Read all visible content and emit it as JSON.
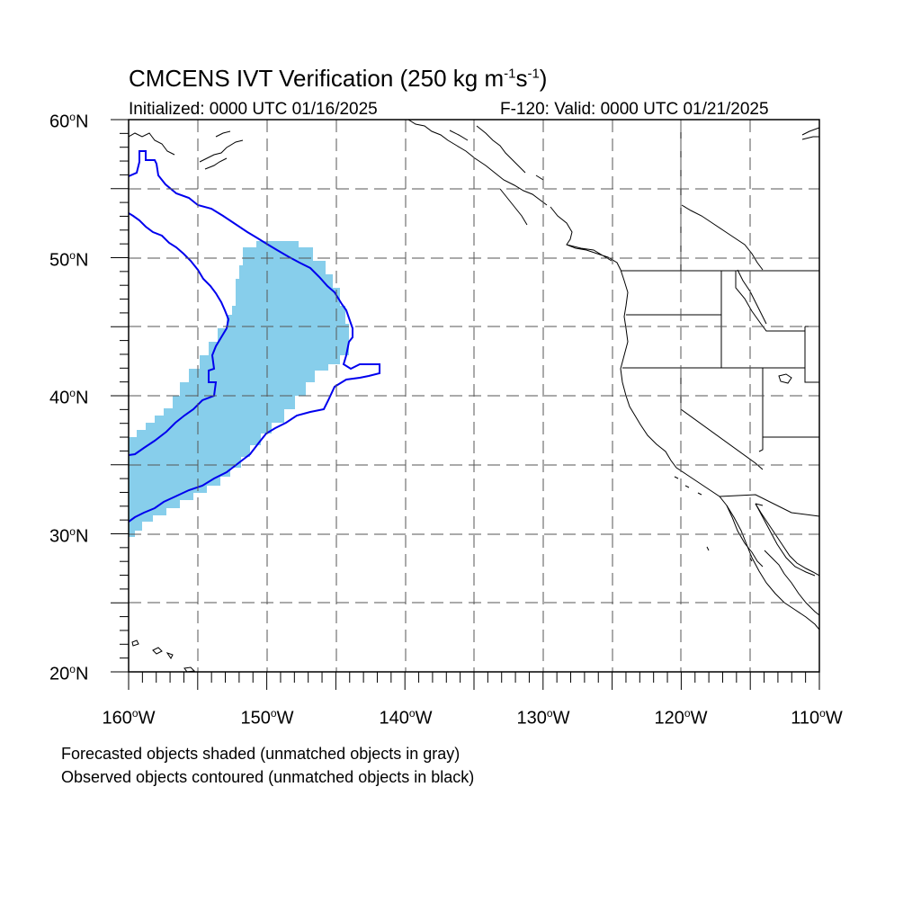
{
  "header": {
    "title_main": "CMCENS IVT Verification (250 kg m",
    "title_exp1": "-1",
    "title_mid": "s",
    "title_exp2": "-1",
    "title_end": ")",
    "initialized": "Initialized: 0000 UTC 01/16/2025",
    "valid": "F-120: Valid: 0000 UTC 01/21/2025"
  },
  "axes": {
    "lat_labels": [
      {
        "num": "60",
        "dir": "N"
      },
      {
        "num": "50",
        "dir": "N"
      },
      {
        "num": "40",
        "dir": "N"
      },
      {
        "num": "30",
        "dir": "N"
      },
      {
        "num": "20",
        "dir": "N"
      }
    ],
    "lon_labels": [
      {
        "num": "160",
        "dir": "W"
      },
      {
        "num": "150",
        "dir": "W"
      },
      {
        "num": "140",
        "dir": "W"
      },
      {
        "num": "130",
        "dir": "W"
      },
      {
        "num": "120",
        "dir": "W"
      },
      {
        "num": "110",
        "dir": "W"
      }
    ],
    "lon_range": [
      -160,
      -110
    ],
    "lat_range": [
      20,
      60
    ]
  },
  "captions": {
    "line1": "Forecasted objects shaded (unmatched objects in gray)",
    "line2": "Observed objects contoured (unmatched objects in black)"
  },
  "colors": {
    "forecast_fill": "#87ceeb",
    "observed_contour": "#0000ee",
    "coastline": "#000000",
    "grid": "#555555"
  }
}
